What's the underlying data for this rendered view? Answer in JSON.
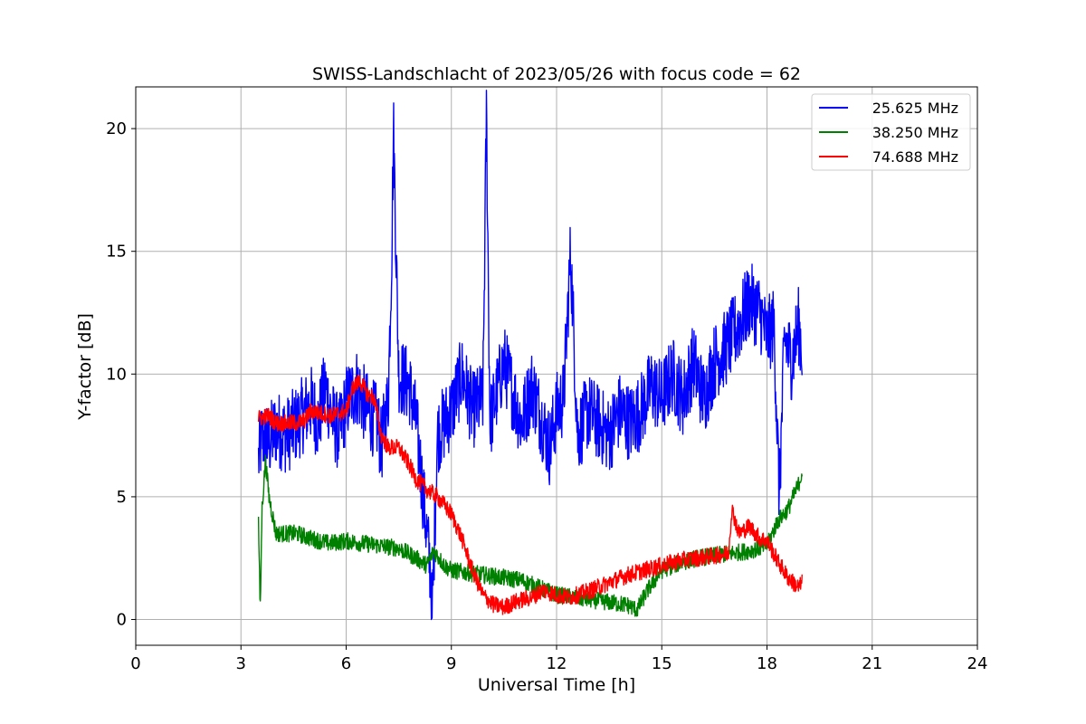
{
  "chart_data": {
    "type": "line",
    "title": "SWISS-Landschlacht of 2023/05/26 with focus code = 62",
    "xlabel": "Universal Time [h]",
    "ylabel": "Y-factor [dB]",
    "xlim": [
      0,
      24
    ],
    "ylim": [
      -1.05,
      21.7
    ],
    "xticks": [
      0,
      3,
      6,
      9,
      12,
      15,
      18,
      21,
      24
    ],
    "yticks": [
      0,
      5,
      10,
      15,
      20
    ],
    "grid": true,
    "legend_position": "top-right",
    "series": [
      {
        "name": "25.625 MHz",
        "color": "#0000ff",
        "x": [
          3.5,
          3.6,
          3.8,
          4.0,
          4.3,
          4.6,
          5.0,
          5.2,
          5.4,
          5.6,
          5.8,
          6.0,
          6.3,
          6.6,
          6.9,
          7.0,
          7.2,
          7.3,
          7.35,
          7.5,
          7.8,
          8.0,
          8.2,
          8.4,
          8.45,
          8.6,
          9.0,
          9.3,
          9.6,
          9.9,
          10.0,
          10.1,
          10.5,
          10.8,
          11.0,
          11.3,
          11.6,
          11.8,
          12.0,
          12.2,
          12.4,
          12.6,
          12.9,
          13.2,
          13.5,
          13.8,
          14.1,
          14.4,
          14.7,
          15.0,
          15.3,
          15.6,
          15.9,
          16.2,
          16.5,
          16.8,
          17.0,
          17.2,
          17.5,
          17.8,
          18.0,
          18.2,
          18.35,
          18.5,
          18.7,
          18.9,
          19.0
        ],
        "y": [
          6.5,
          7.5,
          7.2,
          7.8,
          7.5,
          8.0,
          8.8,
          8.0,
          9.5,
          8.2,
          7.5,
          8.8,
          9.5,
          8.5,
          8.0,
          7.0,
          9.0,
          15.0,
          20.0,
          10.0,
          9.5,
          8.0,
          5.0,
          2.0,
          0.0,
          7.5,
          8.5,
          10.0,
          8.5,
          9.0,
          20.7,
          8.0,
          10.5,
          9.0,
          8.0,
          9.5,
          8.0,
          7.0,
          8.5,
          9.0,
          15.0,
          7.5,
          8.5,
          8.0,
          7.5,
          8.5,
          8.0,
          8.5,
          9.5,
          9.0,
          10.0,
          9.0,
          10.5,
          9.0,
          10.5,
          11.0,
          11.5,
          12.0,
          13.0,
          12.5,
          11.5,
          12.0,
          5.0,
          11.5,
          10.5,
          12.0,
          11.0
        ]
      },
      {
        "name": "38.250 MHz",
        "color": "#008000",
        "x": [
          3.5,
          3.55,
          3.6,
          3.7,
          3.8,
          4.0,
          4.3,
          4.6,
          5.0,
          5.5,
          6.0,
          6.5,
          7.0,
          7.5,
          8.0,
          8.3,
          8.5,
          8.8,
          9.0,
          9.5,
          10.0,
          10.5,
          11.0,
          11.5,
          12.0,
          12.5,
          13.0,
          13.5,
          14.0,
          14.3,
          14.6,
          15.0,
          15.5,
          16.0,
          16.5,
          17.0,
          17.5,
          18.0,
          18.3,
          18.6,
          18.9,
          19.0
        ],
        "y": [
          4.0,
          0.3,
          4.5,
          6.5,
          5.0,
          3.5,
          3.5,
          3.5,
          3.3,
          3.1,
          3.2,
          3.1,
          3.0,
          2.9,
          2.5,
          2.2,
          2.8,
          2.2,
          2.0,
          1.9,
          1.8,
          1.7,
          1.6,
          1.3,
          1.0,
          0.9,
          0.8,
          0.7,
          0.6,
          0.4,
          1.2,
          2.0,
          2.3,
          2.5,
          2.6,
          2.7,
          2.8,
          3.0,
          4.0,
          4.5,
          5.5,
          6.0
        ]
      },
      {
        "name": "74.688 MHz",
        "color": "#ff0000",
        "x": [
          3.5,
          3.8,
          4.0,
          4.3,
          4.6,
          4.8,
          5.0,
          5.3,
          5.6,
          6.0,
          6.2,
          6.4,
          6.6,
          6.8,
          7.0,
          7.2,
          7.5,
          7.8,
          8.0,
          8.3,
          8.6,
          9.0,
          9.3,
          9.6,
          9.9,
          10.2,
          10.5,
          10.8,
          11.0,
          11.3,
          11.6,
          12.0,
          12.3,
          12.6,
          13.0,
          13.5,
          14.0,
          14.5,
          15.0,
          15.5,
          16.0,
          16.5,
          16.9,
          17.0,
          17.2,
          17.5,
          17.8,
          18.0,
          18.3,
          18.6,
          18.9,
          19.0
        ],
        "y": [
          8.2,
          8.3,
          8.0,
          8.0,
          8.0,
          8.1,
          8.5,
          8.4,
          8.3,
          8.5,
          9.5,
          9.7,
          9.2,
          9.0,
          7.5,
          7.0,
          7.0,
          6.3,
          5.7,
          5.3,
          5.0,
          4.3,
          3.3,
          2.0,
          1.0,
          0.6,
          0.5,
          0.7,
          0.8,
          0.9,
          1.2,
          1.0,
          0.9,
          1.0,
          1.2,
          1.5,
          1.8,
          2.0,
          2.2,
          2.4,
          2.5,
          2.6,
          2.7,
          4.5,
          3.5,
          3.8,
          3.3,
          3.2,
          2.4,
          1.7,
          1.3,
          1.5
        ]
      }
    ]
  }
}
